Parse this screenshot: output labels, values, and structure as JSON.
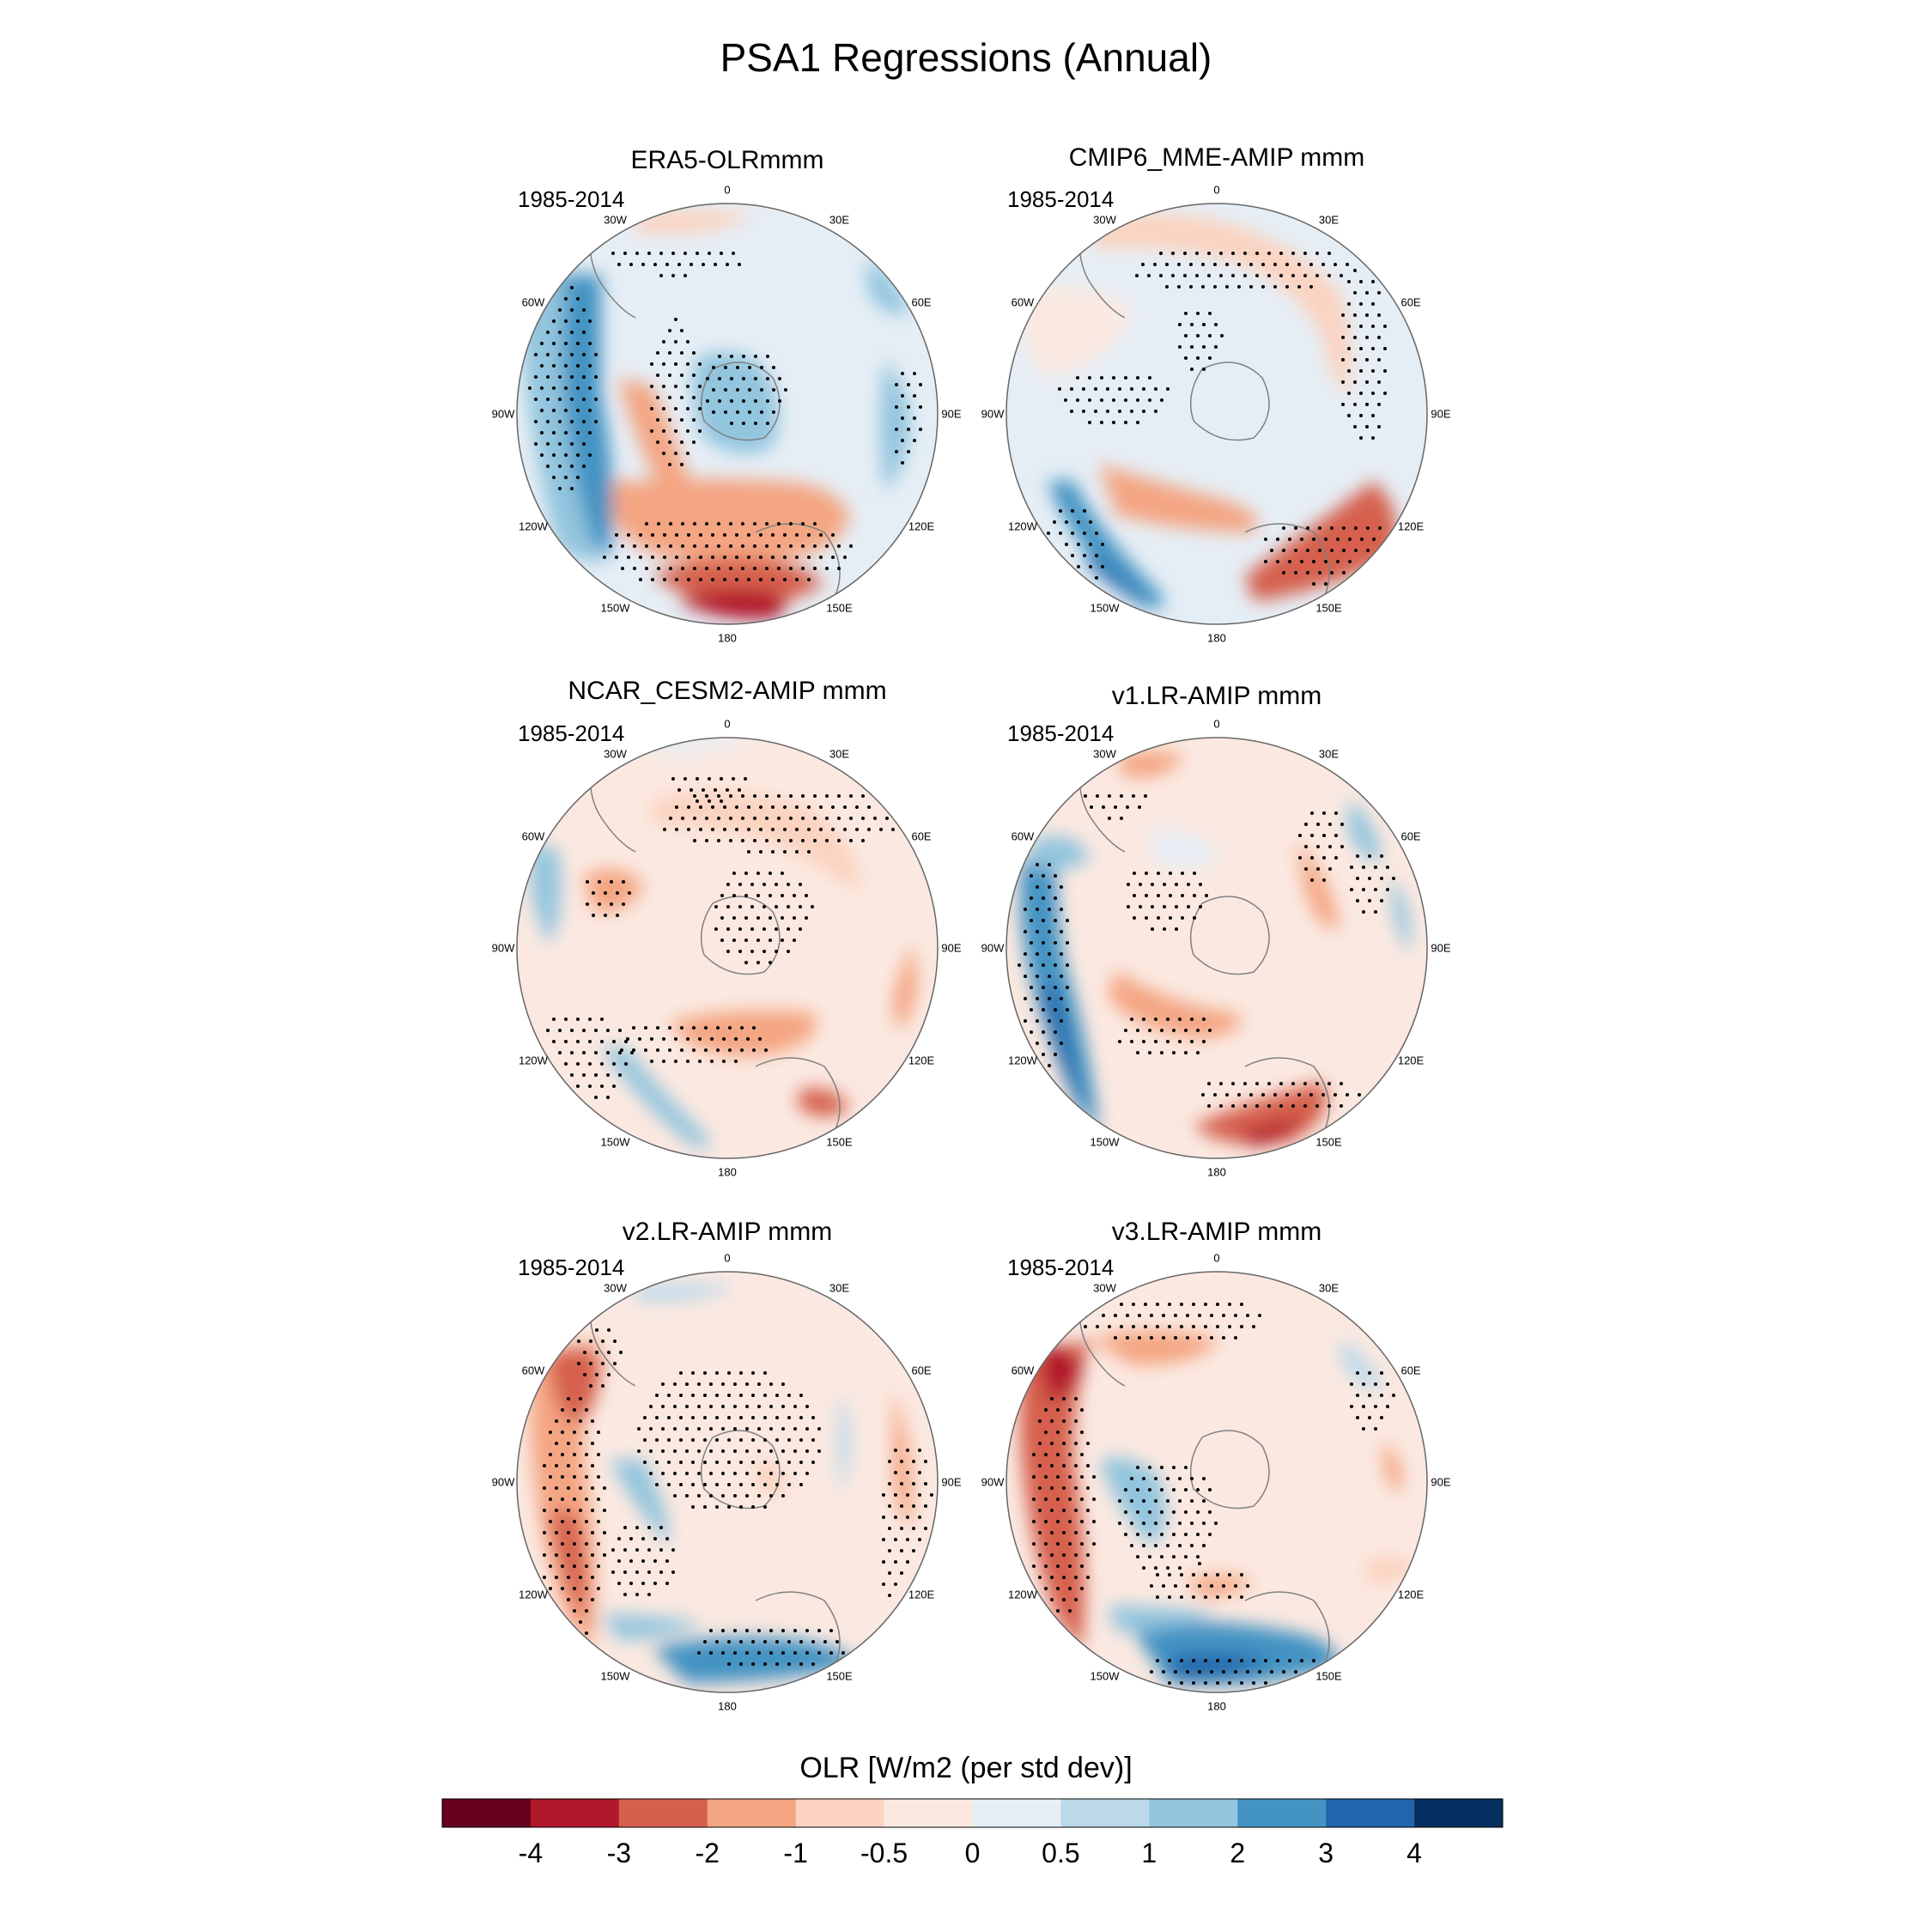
{
  "title": "PSA1 Regressions (Annual)",
  "panels": [
    {
      "id": "era5",
      "title": "ERA5-OLRmmm",
      "period": "1985-2014"
    },
    {
      "id": "cmip6",
      "title": "CMIP6_MME-AMIP  mmm",
      "period": "1985-2014"
    },
    {
      "id": "cesm2",
      "title": "NCAR_CESM2-AMIP  mmm",
      "period": "1985-2014"
    },
    {
      "id": "v1",
      "title": "v1.LR-AMIP  mmm",
      "period": "1985-2014"
    },
    {
      "id": "v2",
      "title": "v2.LR-AMIP  mmm",
      "period": "1985-2014"
    },
    {
      "id": "v3",
      "title": "v3.LR-AMIP  mmm",
      "period": "1985-2014"
    }
  ],
  "longitude_labels": [
    "0",
    "30E",
    "60E",
    "90E",
    "120E",
    "150E",
    "180",
    "150W",
    "120W",
    "90W",
    "60W",
    "30W"
  ],
  "colorbar": {
    "title": "OLR [W/m2 (per std dev)]",
    "ticks": [
      "-4",
      "-3",
      "-2",
      "-1",
      "-0.5",
      "0",
      "0.5",
      "1",
      "2",
      "3",
      "4"
    ],
    "colors": [
      "#67001f",
      "#b2182b",
      "#d6604d",
      "#f4a582",
      "#fbd3c0",
      "#fbe9e1",
      "#e6eef5",
      "#bcd9ea",
      "#92c5de",
      "#4393c3",
      "#2166ac",
      "#053061"
    ]
  }
}
